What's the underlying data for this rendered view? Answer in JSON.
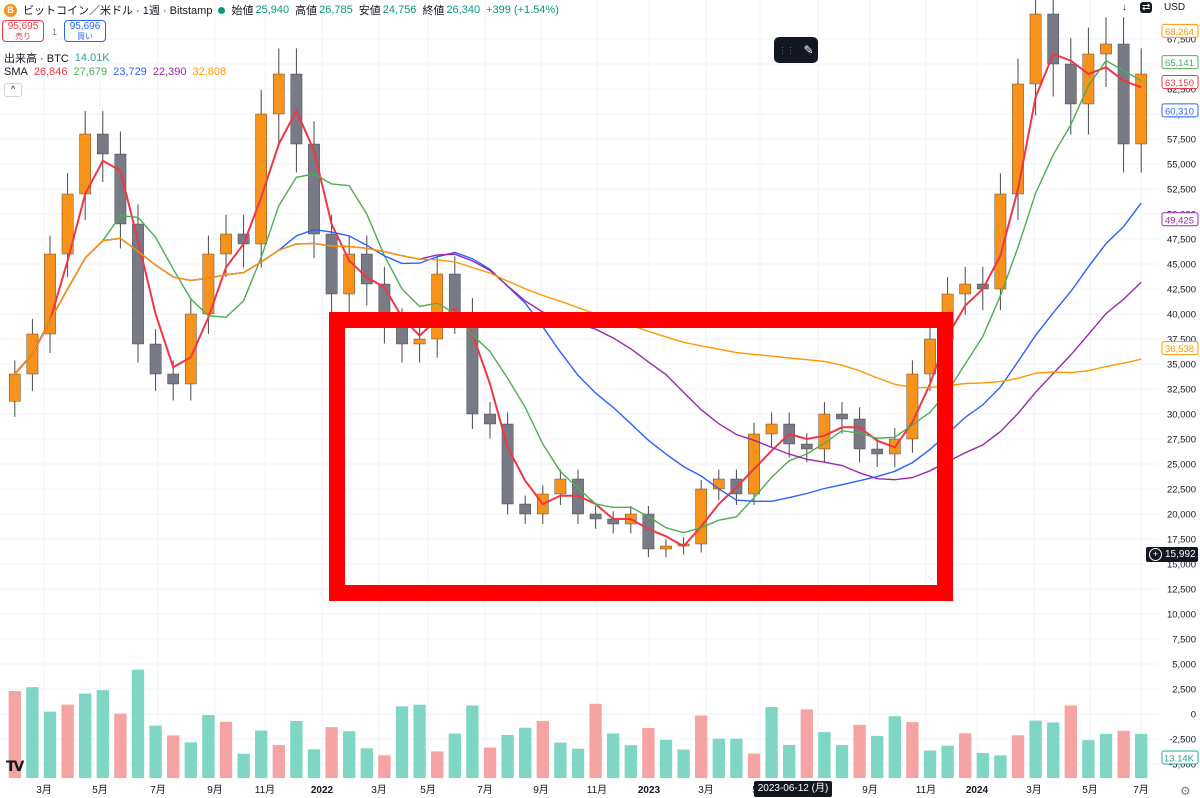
{
  "header": {
    "symbol_title": "ビットコイン／米ドル · 1週 · Bitstamp",
    "coin_glyph": "B",
    "open_label": "始値",
    "open_value": "25,940",
    "high_label": "高値",
    "high_value": "26,785",
    "low_label": "安値",
    "low_value": "24,756",
    "close_label": "終値",
    "close_value": "26,340",
    "change": "+399 (+1.54%)"
  },
  "trade": {
    "sell_price": "95,695",
    "sell_label": "売り",
    "spread": "1",
    "buy_price": "95,696",
    "buy_label": "買い"
  },
  "volume_legend": {
    "label": "出来高 · BTC",
    "value": "14.01K"
  },
  "sma_legend": {
    "label": "SMA",
    "values": [
      {
        "value": "26,846",
        "color": "#f23645"
      },
      {
        "value": "27,679",
        "color": "#4caf50"
      },
      {
        "value": "23,729",
        "color": "#2962ff"
      },
      {
        "value": "22,390",
        "color": "#9c27b0"
      },
      {
        "value": "32,808",
        "color": "#ff9800"
      }
    ]
  },
  "collapse_glyph": "^",
  "top_right": {
    "currency": "USD"
  },
  "toolbar": {
    "drag_glyph": "⋮⋮",
    "brush_glyph": "✎"
  },
  "crosshair": {
    "date": "2023-06-12 (月)",
    "price": "15,992",
    "plus_glyph": "+"
  },
  "logo_text": "TV",
  "settings_glyph": "⚙",
  "colors": {
    "up_body": "#f7931a",
    "down_body": "#787b86",
    "wick": "#4a4a4a",
    "volume_bar": "#7fd6c4",
    "volume_bar_alt": "#f5a3a3",
    "highlight_rect": "#ff0000",
    "grid": "#f0f3fa"
  },
  "chart_data": {
    "type": "line",
    "title": "ビットコイン／米ドル · 1週 · Bitstamp",
    "xlabel": "",
    "ylabel": "USD",
    "ylim": [
      0,
      70000
    ],
    "price_axis_ticks": [
      "67,500",
      "65,000",
      "62,500",
      "60,000",
      "57,500",
      "55,000",
      "52,500",
      "50,000",
      "47,500",
      "45,000",
      "42,500",
      "40,000",
      "37,500",
      "35,000",
      "32,500",
      "30,000",
      "27,500",
      "25,000",
      "22,500",
      "20,000",
      "17,500",
      "15,000",
      "12,500",
      "10,000",
      "7,500",
      "5,000",
      "2,500",
      "0",
      "-2,500",
      "-5,000"
    ],
    "time_axis_labels": [
      "3月",
      "5月",
      "7月",
      "9月",
      "11月",
      "2022",
      "3月",
      "5月",
      "7月",
      "9月",
      "11月",
      "2023",
      "3月",
      "5月",
      "7月",
      "9月",
      "11月",
      "2024",
      "3月",
      "5月",
      "7月"
    ],
    "price_tags": [
      {
        "value": "68,264",
        "color": "#ff9800",
        "price": 68264
      },
      {
        "value": "65,141",
        "color": "#4caf50",
        "price": 65141
      },
      {
        "value": "63,150",
        "color": "#f23645",
        "price": 63150
      },
      {
        "value": "60,310",
        "color": "#2962ff",
        "price": 60310
      },
      {
        "value": "49,425",
        "color": "#9c27b0",
        "price": 49425
      },
      {
        "value": "36,538",
        "color": "#ff9800",
        "price": 36538
      },
      {
        "value": "13.14K",
        "color": "#26a69a",
        "price": null
      }
    ],
    "weekly_close_series": [
      34000,
      38000,
      46000,
      52000,
      58000,
      56000,
      49000,
      37000,
      34000,
      33000,
      40000,
      46000,
      48000,
      47000,
      60000,
      64000,
      57000,
      48000,
      42000,
      46000,
      43000,
      39000,
      37000,
      37500,
      44000,
      40000,
      30000,
      29000,
      21000,
      20000,
      22000,
      23500,
      20000,
      19500,
      19000,
      20000,
      16500,
      16800,
      17000,
      22500,
      23500,
      22000,
      28000,
      29000,
      27000,
      26500,
      30000,
      29500,
      26500,
      26000,
      27500,
      34000,
      37500,
      42000,
      43000,
      42500,
      52000,
      63000,
      70000,
      65000,
      61000,
      66000,
      67000,
      57000,
      64000
    ]
  }
}
